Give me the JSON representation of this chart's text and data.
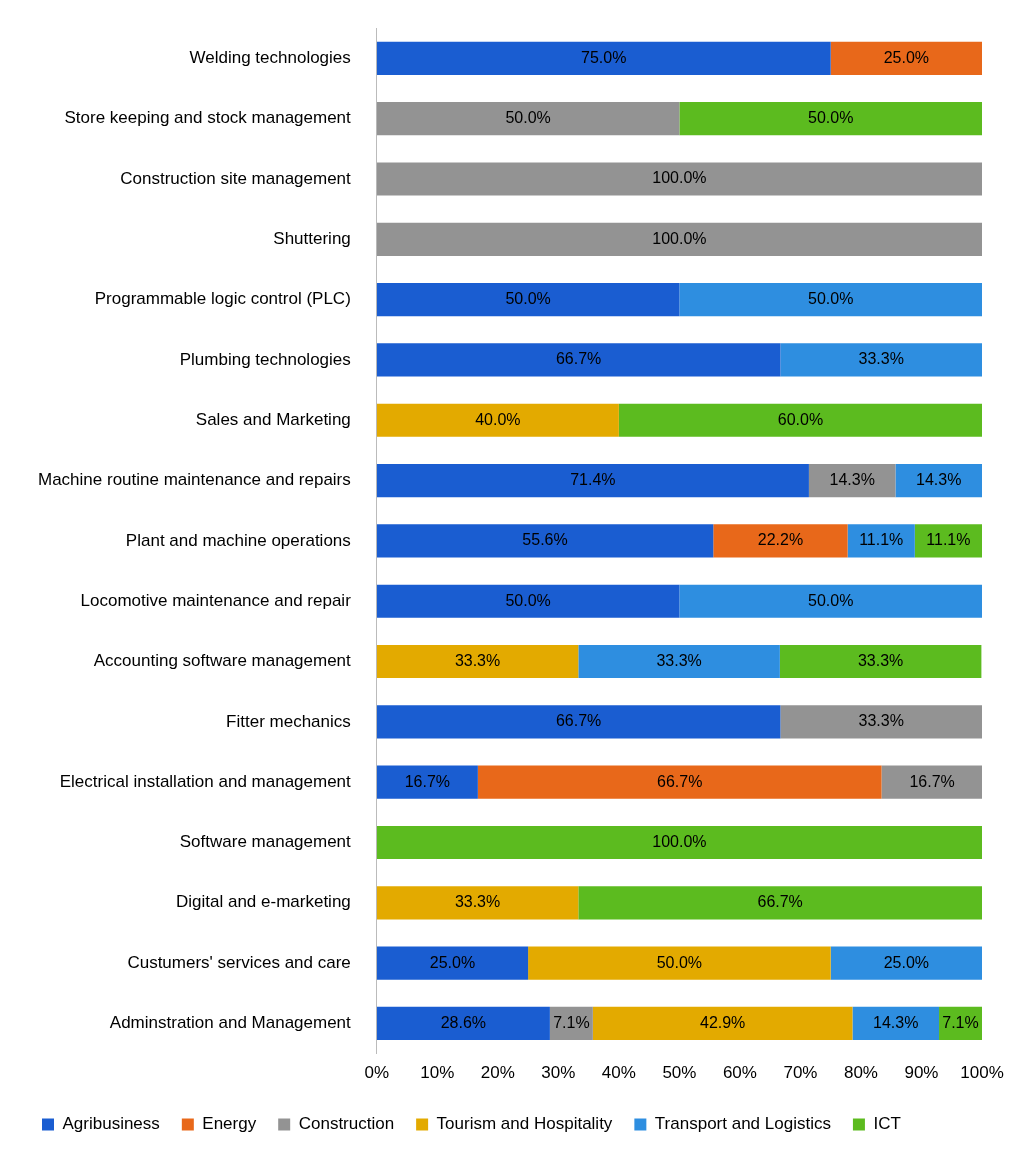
{
  "chart_data": {
    "type": "bar",
    "orientation": "horizontal",
    "stacked": true,
    "categories": [
      "Welding technologies",
      "Store keeping and stock management",
      "Construction site management",
      "Shuttering",
      "Programmable logic control (PLC)",
      "Plumbing technologies",
      "Sales and Marketing",
      "Machine routine maintenance and repairs",
      "Plant and machine operations",
      "Locomotive maintenance and repair",
      "Accounting software management",
      "Fitter mechanics",
      "Electrical installation and management",
      "Software management",
      "Digital and e-marketing",
      "Custumers' services and care",
      "Adminstration and Management"
    ],
    "series": [
      {
        "name": "Agribusiness",
        "color": "#1a5dd1",
        "values": [
          75,
          null,
          null,
          null,
          50,
          66.7,
          null,
          71.4,
          55.6,
          50,
          null,
          66.7,
          16.7,
          null,
          null,
          25,
          28.6
        ],
        "value_labels": [
          "75.0%",
          null,
          null,
          null,
          "50.0%",
          "66.7%",
          null,
          "71.4%",
          "55.6%",
          "50.0%",
          null,
          "66.7%",
          "16.7%",
          null,
          null,
          "25.0%",
          "28.6%"
        ]
      },
      {
        "name": "Energy",
        "color": "#e8681a",
        "values": [
          25,
          null,
          null,
          null,
          null,
          null,
          null,
          null,
          22.2,
          null,
          null,
          null,
          66.7,
          null,
          null,
          null,
          null
        ],
        "value_labels": [
          "25.0%",
          null,
          null,
          null,
          null,
          null,
          null,
          null,
          "22.2%",
          null,
          null,
          null,
          "66.7%",
          null,
          null,
          null,
          null
        ]
      },
      {
        "name": "Construction",
        "color": "#939393",
        "values": [
          null,
          50,
          100,
          100,
          null,
          null,
          null,
          14.3,
          null,
          null,
          null,
          33.3,
          16.7,
          null,
          null,
          null,
          7.1
        ],
        "value_labels": [
          null,
          "50.0%",
          "100.0%",
          "100.0%",
          null,
          null,
          null,
          "14.3%",
          null,
          null,
          null,
          "33.3%",
          "16.7%",
          null,
          null,
          null,
          "7.1%"
        ]
      },
      {
        "name": "Tourism and Hospitality",
        "color": "#e3aa00",
        "values": [
          null,
          null,
          null,
          null,
          null,
          null,
          40,
          null,
          null,
          null,
          33.3,
          null,
          null,
          null,
          33.3,
          50,
          42.9
        ],
        "value_labels": [
          null,
          null,
          null,
          null,
          null,
          null,
          "40.0%",
          null,
          null,
          null,
          "33.3%",
          null,
          null,
          null,
          "33.3%",
          "50.0%",
          "42.9%"
        ]
      },
      {
        "name": "Transport and Logistics",
        "color": "#2e8ee0",
        "values": [
          null,
          null,
          null,
          null,
          50,
          33.3,
          null,
          14.3,
          11.1,
          50,
          33.3,
          null,
          null,
          null,
          null,
          25,
          14.3
        ],
        "value_labels": [
          null,
          null,
          null,
          null,
          "50.0%",
          "33.3%",
          null,
          "14.3%",
          "11.1%",
          "50.0%",
          "33.3%",
          null,
          null,
          null,
          null,
          "25.0%",
          "14.3%"
        ]
      },
      {
        "name": "ICT",
        "color": "#5cbb1f",
        "values": [
          null,
          50,
          null,
          null,
          null,
          null,
          60,
          null,
          11.1,
          null,
          33.3,
          null,
          null,
          100,
          66.7,
          null,
          7.1
        ],
        "value_labels": [
          null,
          "50.0%",
          null,
          null,
          null,
          null,
          "60.0%",
          null,
          "11.1%",
          null,
          "33.3%",
          null,
          null,
          "100.0%",
          "66.7%",
          null,
          "7.1%"
        ]
      }
    ],
    "xlim": [
      0,
      100
    ],
    "xticks": [
      {
        "value": 0,
        "label": "0%"
      },
      {
        "value": 10,
        "label": "10%"
      },
      {
        "value": 20,
        "label": "20%"
      },
      {
        "value": 30,
        "label": "30%"
      },
      {
        "value": 40,
        "label": "40%"
      },
      {
        "value": 50,
        "label": "50%"
      },
      {
        "value": 60,
        "label": "60%"
      },
      {
        "value": 70,
        "label": "70%"
      },
      {
        "value": 80,
        "label": "80%"
      },
      {
        "value": 90,
        "label": "90%"
      },
      {
        "value": 100,
        "label": "100%"
      }
    ],
    "grid": false,
    "legend": "bottom"
  }
}
